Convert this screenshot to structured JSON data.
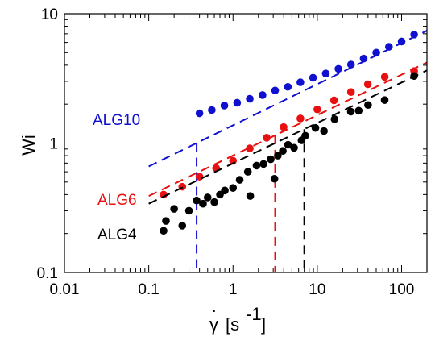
{
  "chart_data": {
    "type": "scatter",
    "x_scale": "log",
    "y_scale": "log",
    "xlim": [
      0.01,
      200
    ],
    "ylim": [
      0.1,
      10
    ],
    "xlabel_base": "γ",
    "xlabel_unit_open": "[s",
    "xlabel_unit_exp": "-1",
    "xlabel_unit_close": "]",
    "ylabel": "Wi",
    "x_ticks": [
      {
        "value": 0.01,
        "label": "0.01"
      },
      {
        "value": 0.1,
        "label": "0.1"
      },
      {
        "value": 1,
        "label": "1"
      },
      {
        "value": 10,
        "label": "10"
      },
      {
        "value": 100,
        "label": "100"
      }
    ],
    "y_ticks": [
      {
        "value": 0.1,
        "label": "0.1"
      },
      {
        "value": 1,
        "label": "1"
      },
      {
        "value": 10,
        "label": "10"
      }
    ],
    "grid": false,
    "series": [
      {
        "name": "ALG10",
        "color": "#1010d0",
        "points": [
          [
            0.4,
            1.7
          ],
          [
            0.56,
            1.8
          ],
          [
            0.79,
            1.95
          ],
          [
            1.12,
            2.05
          ],
          [
            1.58,
            2.2
          ],
          [
            2.24,
            2.35
          ],
          [
            3.16,
            2.55
          ],
          [
            4.47,
            2.72
          ],
          [
            6.3,
            2.95
          ],
          [
            8.9,
            3.2
          ],
          [
            12.6,
            3.45
          ],
          [
            17.8,
            3.75
          ],
          [
            25.1,
            4.05
          ],
          [
            35.5,
            4.5
          ],
          [
            50.1,
            5.0
          ],
          [
            70.8,
            5.55
          ],
          [
            100,
            6.1
          ],
          [
            141,
            6.9
          ]
        ],
        "fit": {
          "x": [
            0.1,
            200
          ],
          "y": [
            0.66,
            7.4
          ]
        },
        "vline_x": 0.37
      },
      {
        "name": "ALG6",
        "color": "#e81010",
        "points": [
          [
            0.15,
            0.4
          ],
          [
            0.25,
            0.46
          ],
          [
            0.4,
            0.55
          ],
          [
            0.63,
            0.64
          ],
          [
            1.0,
            0.73
          ],
          [
            1.58,
            0.91
          ],
          [
            2.51,
            1.1
          ],
          [
            3.98,
            1.33
          ],
          [
            6.3,
            1.55
          ],
          [
            10,
            1.82
          ],
          [
            15.8,
            2.14
          ],
          [
            25.1,
            2.48
          ],
          [
            39.8,
            2.85
          ],
          [
            63.1,
            3.25
          ],
          [
            141,
            3.6
          ]
        ],
        "fit": {
          "x": [
            0.1,
            200
          ],
          "y": [
            0.39,
            4.2
          ]
        },
        "vline_x": 3.16
      },
      {
        "name": "ALG4",
        "color": "#000000",
        "points": [
          [
            0.15,
            0.21
          ],
          [
            0.16,
            0.25
          ],
          [
            0.2,
            0.31
          ],
          [
            0.25,
            0.23
          ],
          [
            0.3,
            0.3
          ],
          [
            0.37,
            0.36
          ],
          [
            0.44,
            0.34
          ],
          [
            0.5,
            0.38
          ],
          [
            0.6,
            0.35
          ],
          [
            0.7,
            0.4
          ],
          [
            0.8,
            0.43
          ],
          [
            1.0,
            0.45
          ],
          [
            1.2,
            0.52
          ],
          [
            1.5,
            0.6
          ],
          [
            1.6,
            0.39
          ],
          [
            1.9,
            0.67
          ],
          [
            2.3,
            0.69
          ],
          [
            2.8,
            0.75
          ],
          [
            3.1,
            0.53
          ],
          [
            3.4,
            0.8
          ],
          [
            3.9,
            0.87
          ],
          [
            4.5,
            0.97
          ],
          [
            5.3,
            0.92
          ],
          [
            6.5,
            1.05
          ],
          [
            7.2,
            1.14
          ],
          [
            9.5,
            1.31
          ],
          [
            12,
            1.24
          ],
          [
            16,
            1.53
          ],
          [
            25,
            1.75
          ],
          [
            31,
            1.78
          ],
          [
            40,
            1.97
          ],
          [
            63,
            2.15
          ],
          [
            141,
            3.3
          ]
        ],
        "fit": {
          "x": [
            0.1,
            200
          ],
          "y": [
            0.34,
            3.65
          ]
        },
        "vline_x": 7.0
      }
    ]
  }
}
